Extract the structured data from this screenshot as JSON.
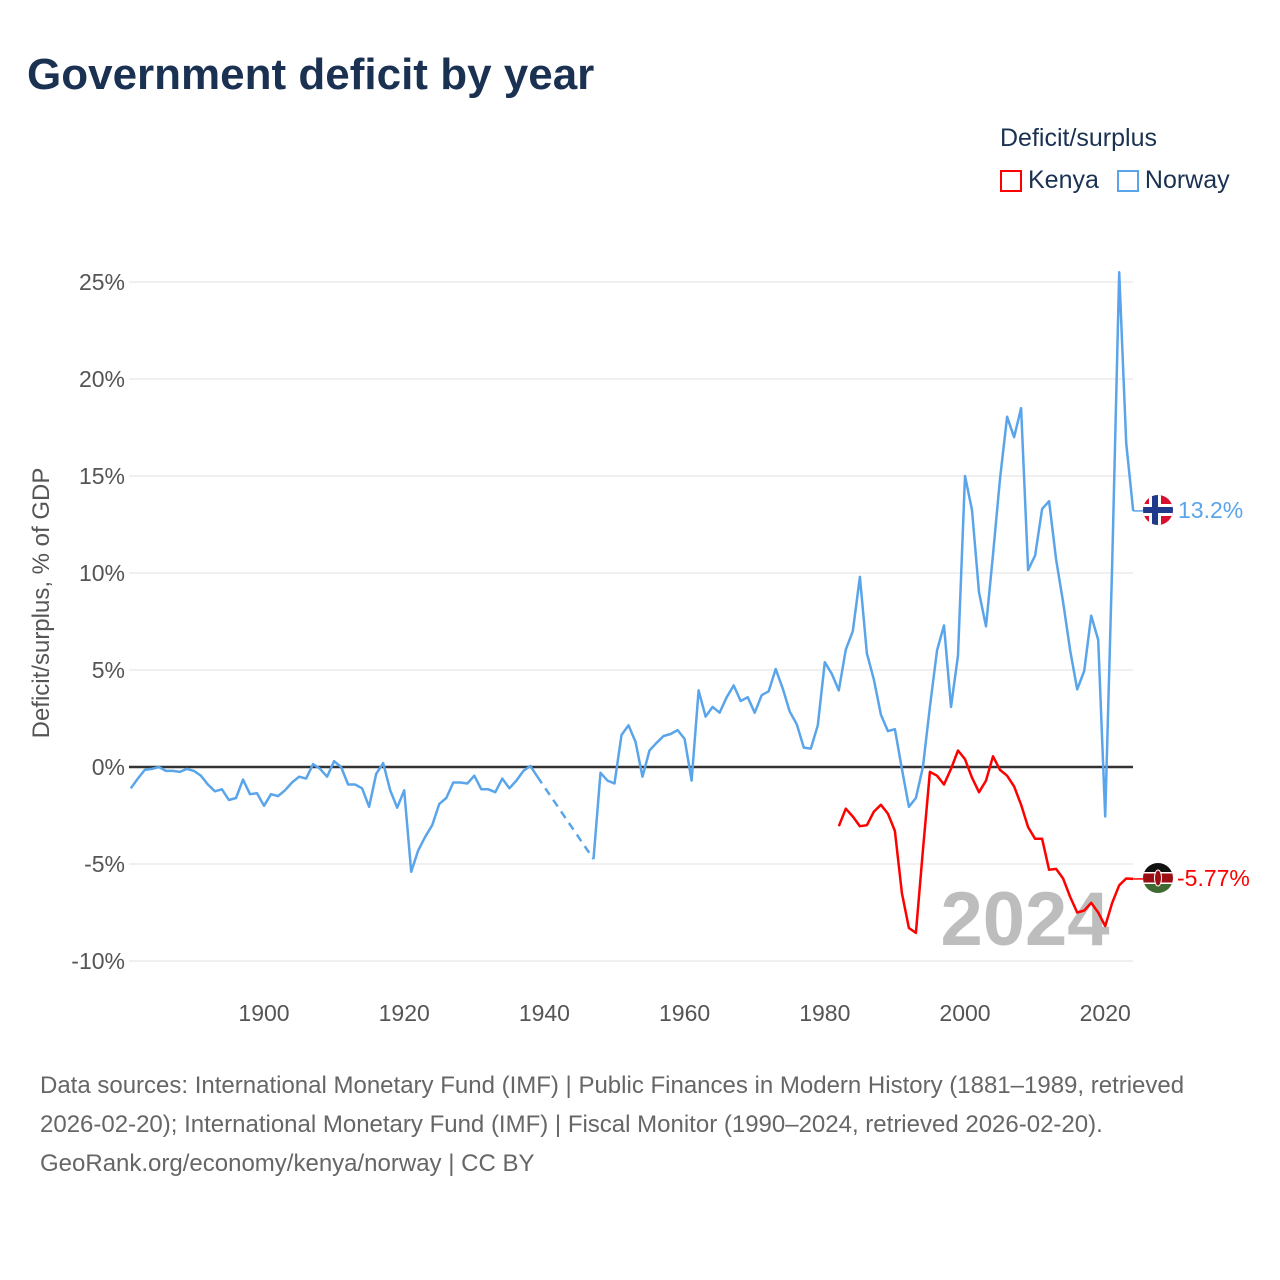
{
  "title": "Government deficit by year",
  "legend": {
    "title": "Deficit/surplus",
    "items": [
      {
        "name": "Kenya",
        "color": "#ff0000"
      },
      {
        "name": "Norway",
        "color": "#5aa5ea"
      }
    ]
  },
  "end_labels": {
    "norway": "13.2%",
    "kenya": "-5.77%"
  },
  "watermark": "2024",
  "footer": {
    "sources": "Data sources: International Monetary Fund (IMF) | Public Finances in Modern History (1881–1989, retrieved 2026-02-20); International Monetary Fund (IMF) | Fiscal Monitor (1990–2024, retrieved 2026-02-20).",
    "credit": "GeoRank.org/economy/kenya/norway | CC BY"
  },
  "chart_data": {
    "type": "line",
    "title": "Government deficit by year",
    "xlabel": "",
    "ylabel": "Deficit/surplus, % of GDP",
    "xlim": [
      1881,
      2024
    ],
    "ylim": [
      -10,
      25
    ],
    "x_ticks": [
      1900,
      1920,
      1940,
      1960,
      1980,
      2000,
      2020
    ],
    "y_ticks": [
      {
        "v": 25,
        "label": "25%"
      },
      {
        "v": 20,
        "label": "20%"
      },
      {
        "v": 15,
        "label": "15%"
      },
      {
        "v": 10,
        "label": "10%"
      },
      {
        "v": 5,
        "label": "5%"
      },
      {
        "v": 0,
        "label": "0%"
      },
      {
        "v": -5,
        "label": "-5%"
      },
      {
        "v": -10,
        "label": "-10%"
      }
    ],
    "grid": true,
    "legend_position": "top-right",
    "series": [
      {
        "name": "Norway",
        "color": "#5aa5ea",
        "start_year": 1881,
        "values": [
          -1.1,
          -0.6,
          -0.15,
          -0.1,
          0,
          -0.2,
          -0.2,
          -0.25,
          -0.1,
          -0.2,
          -0.45,
          -0.9,
          -1.25,
          -1.15,
          -1.7,
          -1.6,
          -0.65,
          -1.4,
          -1.35,
          -2.0,
          -1.4,
          -1.5,
          -1.2,
          -0.8,
          -0.5,
          -0.6,
          0.15,
          -0.1,
          -0.5,
          0.3,
          0,
          -0.9,
          -0.9,
          -1.1,
          -2.05,
          -0.35,
          0.2,
          -1.2,
          -2.1,
          -1.2,
          -5.4,
          -4.3,
          -3.6,
          -3.0,
          -1.9,
          -1.6,
          -0.8,
          -0.8,
          -0.85,
          -0.45,
          -1.15,
          -1.15,
          -1.3,
          -0.6,
          -1.1,
          -0.7,
          -0.2,
          0.05,
          -0.5,
          null,
          null,
          null,
          null,
          null,
          null,
          null,
          -4.75,
          -0.3,
          -0.7,
          -0.85,
          1.65,
          2.15,
          1.3,
          -0.5,
          0.85,
          1.25,
          1.6,
          1.7,
          1.9,
          1.45,
          -0.7,
          3.95,
          2.6,
          3.1,
          2.8,
          3.6,
          4.2,
          3.4,
          3.6,
          2.8,
          3.7,
          3.9,
          5.05,
          4.05,
          2.85,
          2.2,
          1.0,
          0.95,
          2.15,
          5.4,
          4.8,
          3.95,
          6.05,
          7.0,
          9.8,
          5.85,
          4.5,
          2.7,
          1.85,
          1.95,
          -0.1,
          -2.05,
          -1.6,
          0,
          3.1,
          6.0,
          7.3,
          3.1,
          5.75,
          15.0,
          13.25,
          9.0,
          7.25,
          10.95,
          14.85,
          18.05,
          17.0,
          18.5,
          10.15,
          10.9,
          13.3,
          13.7,
          10.7,
          8.5,
          6.0,
          4.0,
          4.95,
          7.8,
          6.55,
          -2.55,
          10.5,
          25.5,
          16.7,
          13.2
        ]
      },
      {
        "name": "Kenya",
        "color": "#ff0000",
        "start_year": 1982,
        "values": [
          -3.05,
          -2.15,
          -2.55,
          -3.05,
          -3.0,
          -2.3,
          -1.95,
          -2.4,
          -3.3,
          -6.5,
          -8.3,
          -8.55,
          -4.3,
          -0.25,
          -0.45,
          -0.9,
          -0.1,
          0.85,
          0.4,
          -0.55,
          -1.3,
          -0.7,
          0.55,
          -0.15,
          -0.45,
          -1.0,
          -1.95,
          -3.1,
          -3.7,
          -3.7,
          -5.3,
          -5.25,
          -5.75,
          -6.7,
          -7.5,
          -7.4,
          -7.0,
          -7.5,
          -8.2,
          -7.0,
          -6.1,
          -5.75,
          -5.77
        ]
      }
    ]
  }
}
